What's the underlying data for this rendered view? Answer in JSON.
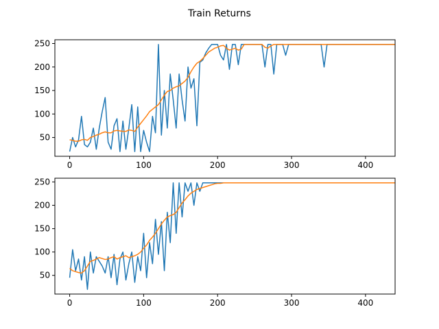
{
  "figure": {
    "title": "Train Returns",
    "colors": {
      "raw": "#1f77b4",
      "smoothed": "#ff7f0e"
    }
  },
  "chart_data": [
    {
      "type": "line",
      "title": "",
      "xlabel": "",
      "ylabel": "",
      "xlim": [
        -20,
        440
      ],
      "ylim": [
        10,
        258
      ],
      "xticks": [
        0,
        100,
        200,
        300,
        400
      ],
      "yticks": [
        50,
        100,
        150,
        200,
        250
      ],
      "grid": false,
      "x": {
        "start": 0,
        "step": 4
      },
      "series": [
        {
          "values": [
            20,
            50,
            30,
            45,
            95,
            35,
            30,
            40,
            70,
            25,
            70,
            105,
            135,
            40,
            25,
            75,
            90,
            20,
            85,
            25,
            70,
            120,
            20,
            115,
            20,
            65,
            40,
            20,
            95,
            60,
            248,
            55,
            150,
            70,
            185,
            130,
            70,
            185,
            130,
            85,
            200,
            155,
            175,
            75,
            210,
            215,
            230,
            240,
            248,
            248,
            248,
            225,
            215,
            248,
            195,
            248,
            248,
            205,
            248,
            248,
            248,
            248,
            248,
            248,
            248,
            248,
            200,
            248,
            248,
            185,
            248,
            248,
            248,
            225,
            248,
            248,
            248,
            248,
            248,
            248,
            248,
            248,
            248,
            248,
            248,
            248,
            200,
            248,
            248,
            248,
            248,
            248,
            248,
            248,
            248,
            248,
            248,
            248,
            248,
            248,
            248,
            248,
            248,
            248,
            248,
            248,
            248,
            248,
            248,
            248,
            248,
            248,
            248,
            248,
            248,
            248,
            248,
            248,
            248,
            248,
            248,
            248,
            248,
            248,
            248,
            248,
            248,
            248,
            248,
            248,
            248,
            248,
            248,
            248,
            248,
            248,
            248,
            248,
            248,
            248,
            248,
            248,
            248,
            248,
            248,
            248,
            248,
            248,
            248,
            248,
            248,
            248,
            248,
            248,
            248,
            248,
            248,
            248,
            248,
            248,
            248,
            248,
            248,
            248,
            248,
            248,
            248,
            248,
            248,
            248,
            248,
            248,
            248,
            248,
            248,
            248,
            248,
            248,
            248,
            248,
            248,
            248,
            248,
            248,
            248,
            248,
            248,
            248,
            248,
            248,
            248,
            248,
            248,
            248,
            248,
            248,
            248,
            248,
            248,
            248,
            248,
            248,
            248,
            248,
            248,
            248,
            248,
            248
          ]
        },
        {
          "values": [
            45,
            44,
            42,
            42,
            45,
            46,
            44,
            50,
            52,
            55,
            57,
            60,
            62,
            60,
            60,
            64,
            65,
            64,
            63,
            63,
            66,
            65,
            63,
            72,
            80,
            88,
            96,
            105,
            110,
            115,
            120,
            130,
            140,
            148,
            150,
            155,
            158,
            160,
            165,
            170,
            178,
            190,
            200,
            208,
            212,
            218,
            225,
            232,
            236,
            240,
            242,
            245,
            246,
            240,
            236,
            238,
            240,
            236,
            238,
            248,
            248,
            248,
            248,
            248,
            248,
            248,
            242,
            240,
            245,
            248,
            248,
            248,
            248,
            248,
            248,
            248,
            248,
            248,
            248,
            248,
            248,
            248,
            248,
            248,
            248,
            248,
            248,
            248,
            248,
            248,
            248,
            248,
            248,
            248,
            248,
            248,
            248,
            248,
            248,
            248,
            248,
            248,
            248,
            248,
            248,
            248,
            248,
            248,
            248,
            248,
            248,
            248,
            248,
            248,
            248,
            248,
            248,
            248,
            248,
            248,
            248,
            248,
            248,
            248,
            248,
            248,
            248,
            248,
            248,
            248,
            248,
            248,
            248,
            248,
            248,
            248,
            248,
            248,
            248,
            248,
            248,
            248,
            248,
            248,
            248,
            248,
            248,
            248,
            248,
            248,
            248,
            248,
            248,
            248,
            248,
            248,
            248,
            248,
            248,
            248,
            248,
            248,
            248,
            248,
            248,
            248,
            248,
            248,
            248,
            248,
            248,
            248,
            248,
            248,
            248,
            248,
            248,
            248,
            248,
            248,
            248,
            248,
            248,
            248,
            248,
            248,
            248,
            248,
            248,
            248,
            248,
            248,
            248,
            248,
            248,
            248,
            248,
            248,
            248,
            248,
            248,
            248,
            248,
            248,
            248,
            248,
            248,
            248,
            248,
            248,
            248,
            248
          ]
        }
      ]
    },
    {
      "type": "line",
      "title": "",
      "xlabel": "",
      "ylabel": "",
      "xlim": [
        -20,
        440
      ],
      "ylim": [
        10,
        258
      ],
      "xticks": [
        0,
        100,
        200,
        300,
        400
      ],
      "yticks": [
        50,
        100,
        150,
        200,
        250
      ],
      "grid": false,
      "x": {
        "start": 0,
        "step": 4
      },
      "series": [
        {
          "values": [
            45,
            105,
            60,
            85,
            40,
            90,
            20,
            100,
            55,
            90,
            80,
            70,
            55,
            90,
            45,
            95,
            30,
            85,
            100,
            40,
            75,
            100,
            35,
            90,
            60,
            140,
            45,
            120,
            75,
            170,
            95,
            165,
            60,
            185,
            120,
            248,
            140,
            248,
            175,
            248,
            230,
            248,
            200,
            248,
            230,
            248,
            248,
            248,
            248,
            248,
            248,
            248,
            248,
            248,
            248,
            248,
            248,
            248,
            248,
            248,
            248,
            248,
            248,
            248,
            248,
            248,
            248,
            248,
            248,
            248,
            248,
            248,
            248,
            248,
            248,
            248,
            248,
            248,
            248,
            248,
            248,
            248,
            248,
            248,
            248,
            248,
            248,
            248,
            248,
            248,
            248,
            248,
            248,
            248,
            248,
            248,
            248,
            248,
            248,
            248,
            248,
            248,
            248,
            248,
            248,
            248,
            248,
            248,
            248,
            248,
            248,
            248,
            248,
            248,
            248,
            248,
            248,
            248,
            248,
            248,
            248,
            248,
            248,
            248,
            248,
            248,
            248,
            248,
            248,
            248,
            248,
            248,
            248,
            248,
            248,
            248,
            248,
            248,
            248,
            248,
            248,
            248,
            248,
            248,
            248,
            248,
            248,
            248,
            248,
            248,
            248,
            248,
            248,
            248,
            248,
            248,
            248,
            248,
            248,
            248,
            248,
            248,
            248,
            248,
            248,
            248,
            248,
            248,
            248,
            248,
            248,
            248,
            248,
            248,
            248,
            248,
            248,
            248,
            248,
            248,
            248,
            248,
            248,
            248,
            248,
            248,
            248,
            248,
            248,
            248,
            248,
            248,
            248,
            248,
            248,
            248,
            248,
            248,
            248,
            248,
            248,
            248,
            248,
            248,
            248,
            248,
            248,
            248,
            248,
            248,
            248
          ]
        },
        {
          "values": [
            65,
            60,
            58,
            56,
            55,
            60,
            70,
            80,
            82,
            85,
            88,
            86,
            84,
            85,
            88,
            90,
            85,
            88,
            90,
            92,
            88,
            90,
            92,
            95,
            100,
            108,
            115,
            125,
            132,
            140,
            150,
            160,
            168,
            175,
            178,
            180,
            185,
            195,
            205,
            212,
            220,
            226,
            230,
            234,
            236,
            238,
            240,
            242,
            244,
            246,
            247,
            247,
            248,
            248,
            248,
            248,
            248,
            248,
            248,
            248,
            248,
            248,
            248,
            248,
            248,
            248,
            248,
            248,
            248,
            248,
            248,
            248,
            248,
            248,
            248,
            248,
            248,
            248,
            248,
            248,
            248,
            248,
            248,
            248,
            248,
            248,
            248,
            248,
            248,
            248,
            248,
            248,
            248,
            248,
            248,
            248,
            248,
            248,
            248,
            248,
            248,
            248,
            248,
            248,
            248,
            248,
            248,
            248,
            248,
            248,
            248,
            248,
            248,
            248,
            248,
            248,
            248,
            248,
            248,
            248,
            248,
            248,
            248,
            248,
            248,
            248,
            248,
            248,
            248,
            248,
            248,
            248,
            248,
            248,
            248,
            248,
            248,
            248,
            248,
            248,
            248,
            248,
            248,
            248,
            248,
            248,
            248,
            248,
            248,
            248,
            248,
            248,
            248,
            248,
            248,
            248,
            248,
            248,
            248,
            248,
            248,
            248,
            248,
            248,
            248,
            248,
            248,
            248,
            248,
            248,
            248,
            248,
            248,
            248,
            248,
            248,
            248,
            248,
            248,
            248,
            248,
            248,
            248,
            248,
            248,
            248,
            248,
            248,
            248,
            248,
            248,
            248,
            248,
            248,
            248,
            248,
            248,
            248,
            248,
            248,
            248,
            248,
            248,
            248,
            248,
            248,
            248,
            248,
            248,
            248,
            248
          ]
        }
      ]
    }
  ]
}
